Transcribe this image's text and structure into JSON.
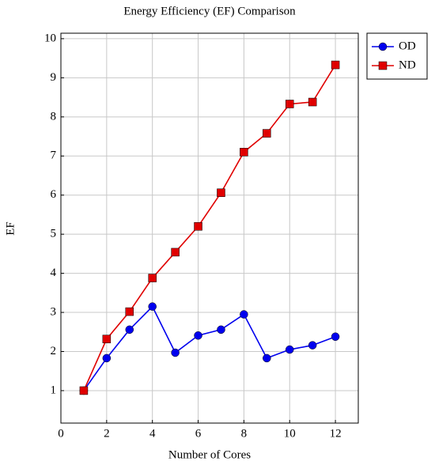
{
  "chart_data": {
    "type": "line",
    "title": "Energy Efficiency (EF) Comparison",
    "x_label": "Number of Cores",
    "y_label": "EF",
    "x": [
      1,
      2,
      3,
      4,
      5,
      6,
      7,
      8,
      9,
      10,
      11,
      12
    ],
    "series": [
      {
        "name": "OD",
        "color": "#0000ee",
        "marker": "circle",
        "values": [
          1,
          1.83,
          2.56,
          3.15,
          1.97,
          2.41,
          2.56,
          2.95,
          1.83,
          2.05,
          2.16,
          2.38
        ]
      },
      {
        "name": "ND",
        "color": "#e00000",
        "marker": "square",
        "values": [
          1,
          2.32,
          3.02,
          3.88,
          4.54,
          5.2,
          6.06,
          7.1,
          7.58,
          8.33,
          8.38,
          9.33
        ]
      }
    ],
    "xlim": [
      0,
      13
    ],
    "ylim": [
      0.17,
      10.14
    ],
    "xticks": [
      0,
      2,
      4,
      6,
      8,
      10,
      12
    ],
    "yticks": [
      1,
      2,
      3,
      4,
      5,
      6,
      7,
      8,
      9,
      10
    ],
    "grid": true,
    "legend": "outside-top-right"
  }
}
